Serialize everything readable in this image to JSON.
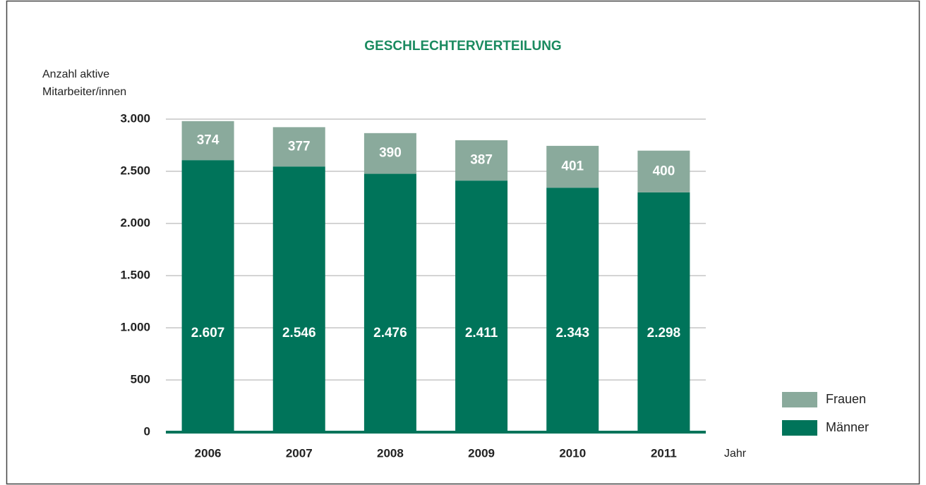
{
  "chart_data": {
    "type": "stacked_bar",
    "title": "GESCHLECHTERVERTEILUNG",
    "y_label": [
      "Anzahl aktive",
      "Mitarbeiter/innen"
    ],
    "x_label": "Jahr",
    "categories": [
      "2006",
      "2007",
      "2008",
      "2009",
      "2010",
      "2011"
    ],
    "series": [
      {
        "name": "Männer",
        "color": "#00745a",
        "values": [
          2607,
          2546,
          2476,
          2411,
          2343,
          2298
        ],
        "value_labels": [
          "2.607",
          "2.546",
          "2.476",
          "2.411",
          "2.343",
          "2.298"
        ]
      },
      {
        "name": "Frauen",
        "color": "#8aaa9c",
        "values": [
          374,
          377,
          390,
          387,
          401,
          400
        ]
      }
    ],
    "ylim": [
      0,
      3000
    ],
    "yticks": [
      0,
      500,
      {
        "value": 1000,
        "label": "1.000"
      },
      {
        "value": 1500,
        "label": "1.500"
      },
      {
        "value": 2000,
        "label": "2.000"
      },
      {
        "value": 2500,
        "label": "2.500"
      },
      {
        "value": 3000,
        "label": "3.000"
      }
    ],
    "grid": true,
    "legend": "right"
  }
}
